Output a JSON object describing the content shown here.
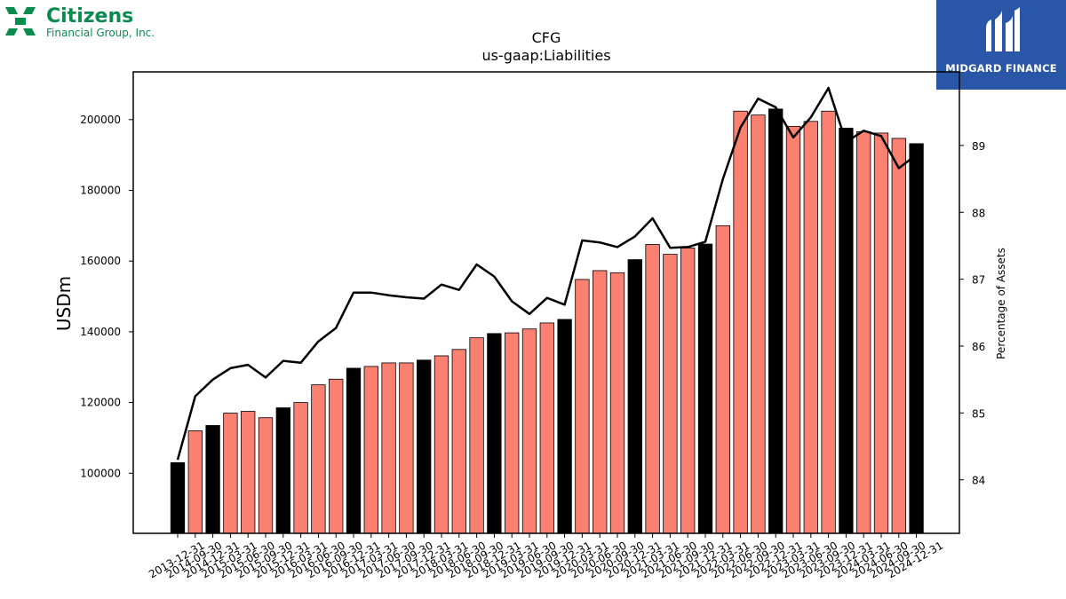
{
  "header": {
    "brand_name": "Citizens",
    "brand_sub": "Financial Group, Inc.",
    "brand_color": "#0b8a4e",
    "watermark_name": "MIDGARD FINANCE",
    "watermark_bg": "#2a56a8"
  },
  "chart_data": {
    "type": "bar",
    "title": "CFG",
    "subtitle": "us-gaap:Liabilities",
    "ylabel": "USDm",
    "y2label": "Percentage of Assets",
    "ylim": [
      83000,
      213500
    ],
    "y2lim": [
      83.2,
      90.1
    ],
    "yticks": [
      100000,
      120000,
      140000,
      160000,
      180000,
      200000
    ],
    "y2ticks": [
      84,
      85,
      86,
      87,
      88,
      89
    ],
    "colors": {
      "annual_bar": "#000000",
      "quarter_bar": "#fa8072",
      "line": "#000000"
    },
    "categories": [
      "2013-12-31",
      "2014-09-30",
      "2014-12-31",
      "2015-03-31",
      "2015-06-30",
      "2015-09-30",
      "2015-12-31",
      "2016-03-31",
      "2016-06-30",
      "2016-09-30",
      "2016-12-31",
      "2017-03-31",
      "2017-06-30",
      "2017-09-30",
      "2017-12-31",
      "2018-03-31",
      "2018-06-30",
      "2018-09-30",
      "2018-12-31",
      "2019-03-31",
      "2019-06-30",
      "2019-09-30",
      "2019-12-31",
      "2020-03-31",
      "2020-06-30",
      "2020-09-30",
      "2020-12-31",
      "2021-03-31",
      "2021-06-30",
      "2021-09-30",
      "2021-12-31",
      "2022-03-31",
      "2022-06-30",
      "2022-09-30",
      "2022-12-31",
      "2023-03-31",
      "2023-06-30",
      "2023-09-30",
      "2023-12-31",
      "2024-03-31",
      "2024-06-30",
      "2024-09-30",
      "2024-12-31"
    ],
    "annual": [
      true,
      false,
      true,
      false,
      false,
      false,
      true,
      false,
      false,
      false,
      true,
      false,
      false,
      false,
      true,
      false,
      false,
      false,
      true,
      false,
      false,
      false,
      true,
      false,
      false,
      false,
      true,
      false,
      false,
      false,
      true,
      false,
      false,
      false,
      true,
      false,
      false,
      false,
      true,
      false,
      false,
      false,
      true
    ],
    "series": [
      {
        "values": [
          103000,
          112000,
          113500,
          117000,
          117500,
          115700,
          118500,
          120000,
          125000,
          126600,
          129700,
          130200,
          131200,
          131200,
          132000,
          133200,
          135000,
          138300,
          139500,
          139700,
          140800,
          142500,
          143500,
          154800,
          157300,
          156700,
          160400,
          164700,
          161900,
          163700,
          164800,
          170000,
          202400,
          201300,
          203000,
          198100,
          199500,
          202400,
          197600,
          196600,
          196200,
          194700,
          193200
        ]
      },
      {
        "values": [
          84.3,
          85.25,
          85.5,
          85.67,
          85.72,
          85.53,
          85.78,
          85.75,
          86.07,
          86.27,
          86.8,
          86.8,
          86.76,
          86.73,
          86.71,
          86.92,
          86.84,
          87.22,
          87.04,
          86.67,
          86.48,
          86.72,
          86.62,
          87.58,
          87.55,
          87.48,
          87.64,
          87.91,
          87.47,
          87.48,
          87.56,
          88.5,
          89.27,
          89.7,
          89.57,
          89.12,
          89.42,
          89.86,
          89.05,
          89.22,
          89.14,
          88.66,
          88.86
        ]
      }
    ]
  }
}
